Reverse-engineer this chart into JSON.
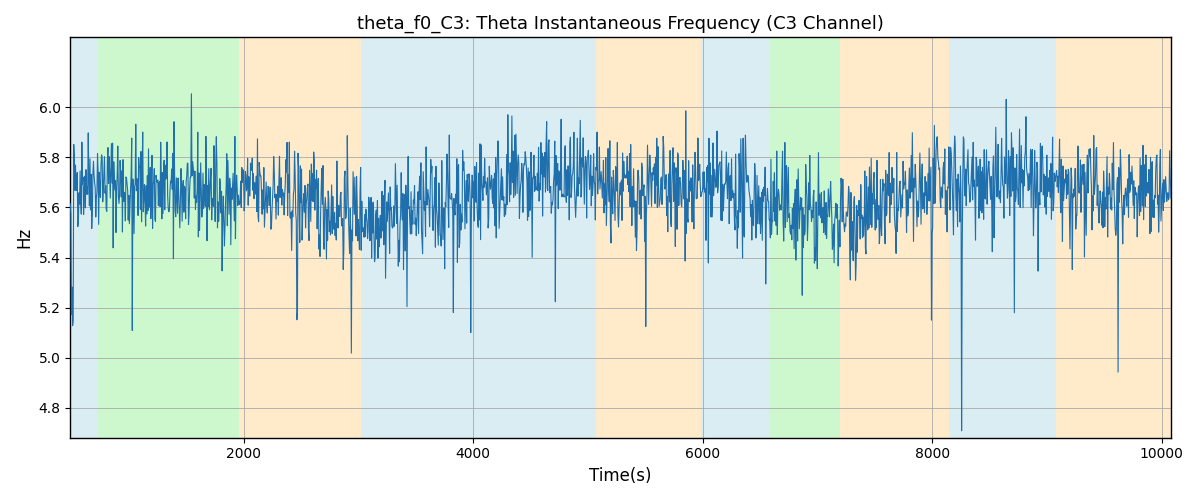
{
  "title": "theta_f0_C3: Theta Instantaneous Frequency (C3 Channel)",
  "xlabel": "Time(s)",
  "ylabel": "Hz",
  "ylim": [
    4.68,
    6.28
  ],
  "xlim": [
    490,
    10080
  ],
  "xticks": [
    2000,
    4000,
    6000,
    8000,
    10000
  ],
  "yticks": [
    4.8,
    5.0,
    5.2,
    5.4,
    5.6,
    5.8,
    6.0
  ],
  "line_color": "#1f6fad",
  "line_width": 0.8,
  "background_color": "#ffffff",
  "grid_color": "#aaaaaa",
  "title_fontsize": 13,
  "label_fontsize": 12,
  "bands": [
    {
      "start": 490,
      "end": 720,
      "color": "#add8e6",
      "alpha": 0.45
    },
    {
      "start": 720,
      "end": 1960,
      "color": "#90ee90",
      "alpha": 0.45
    },
    {
      "start": 1960,
      "end": 3020,
      "color": "#ffd9a0",
      "alpha": 0.55
    },
    {
      "start": 3020,
      "end": 3250,
      "color": "#add8e6",
      "alpha": 0.45
    },
    {
      "start": 3250,
      "end": 3530,
      "color": "#add8e6",
      "alpha": 0.45
    },
    {
      "start": 3530,
      "end": 5070,
      "color": "#add8e6",
      "alpha": 0.45
    },
    {
      "start": 5070,
      "end": 5530,
      "color": "#ffd9a0",
      "alpha": 0.55
    },
    {
      "start": 5530,
      "end": 5990,
      "color": "#ffd9a0",
      "alpha": 0.55
    },
    {
      "start": 5990,
      "end": 6100,
      "color": "#add8e6",
      "alpha": 0.45
    },
    {
      "start": 6100,
      "end": 6250,
      "color": "#add8e6",
      "alpha": 0.45
    },
    {
      "start": 6250,
      "end": 6580,
      "color": "#add8e6",
      "alpha": 0.45
    },
    {
      "start": 6580,
      "end": 7200,
      "color": "#90ee90",
      "alpha": 0.45
    },
    {
      "start": 7200,
      "end": 8150,
      "color": "#ffd9a0",
      "alpha": 0.55
    },
    {
      "start": 8150,
      "end": 9080,
      "color": "#add8e6",
      "alpha": 0.45
    },
    {
      "start": 9080,
      "end": 10080,
      "color": "#ffd9a0",
      "alpha": 0.55
    }
  ],
  "seed": 42,
  "n_points": 1900,
  "base_freq": 5.65,
  "noise_std": 0.1,
  "spike_prob": 0.025,
  "spike_scale": 0.3
}
